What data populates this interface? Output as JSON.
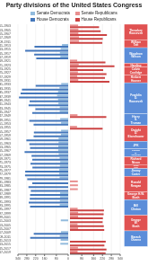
{
  "chart_data": {
    "type": "bar",
    "orientation": "horizontal",
    "title": "Party divisions of the United States Congress",
    "categories": [
      "1901-1903",
      "1903-1905",
      "1905-1907",
      "1907-1909",
      "1909-1911",
      "1911-1913",
      "1913-1915",
      "1915-1917",
      "1917-1919",
      "1919-1921",
      "1921-1923",
      "1923-1925",
      "1925-1927",
      "1927-1929",
      "1929-1931",
      "1931-1933",
      "1933-1935",
      "1935-1937",
      "1937-1939",
      "1939-1941",
      "1941-1943",
      "1943-1945",
      "1945-1947",
      "1947-1949",
      "1949-1951",
      "1951-1953",
      "1953-1955",
      "1955-1957",
      "1957-1959",
      "1959-1961",
      "1961-1963",
      "1963-1965",
      "1965-1967",
      "1967-1969",
      "1969-1971",
      "1971-1973",
      "1973-1975",
      "1975-1977",
      "1977-1979",
      "1979-1981",
      "1981-1983",
      "1983-1985",
      "1985-1987",
      "1987-1989",
      "1989-1991",
      "1991-1993",
      "1993-1995",
      "1995-1997",
      "1997-1999",
      "1999-2001",
      "2001-2003",
      "2003-2005",
      "2005-2007",
      "2007-2009",
      "2009-2011",
      "2011-2013",
      "2013-2015",
      "2015-2017",
      "2017-2019"
    ],
    "series": [
      {
        "name": "Senate Democrats",
        "color": "#92BBDD",
        "values": [
          0,
          0,
          0,
          0,
          0,
          42,
          51,
          56,
          53,
          0,
          0,
          0,
          0,
          0,
          0,
          47,
          59,
          69,
          75,
          69,
          66,
          57,
          57,
          0,
          54,
          48,
          0,
          48,
          49,
          65,
          65,
          67,
          68,
          64,
          58,
          54,
          56,
          60,
          61,
          58,
          0,
          0,
          0,
          55,
          55,
          56,
          57,
          0,
          0,
          0,
          50,
          0,
          0,
          49,
          57,
          51,
          53,
          0,
          0
        ]
      },
      {
        "name": "Senate Republicans",
        "color": "#E89090",
        "axis": "x2",
        "values": [
          55,
          57,
          57,
          61,
          61,
          0,
          0,
          0,
          0,
          49,
          59,
          51,
          54,
          49,
          56,
          0,
          0,
          0,
          0,
          0,
          0,
          0,
          0,
          51,
          0,
          0,
          48,
          0,
          0,
          0,
          0,
          0,
          0,
          0,
          0,
          0,
          0,
          0,
          0,
          0,
          53,
          54,
          53,
          0,
          0,
          0,
          0,
          52,
          55,
          55,
          0,
          51,
          55,
          0,
          0,
          0,
          0,
          54,
          52
        ]
      },
      {
        "name": "House Democrats",
        "color": "#4477BB",
        "values": [
          0,
          0,
          0,
          0,
          0,
          228,
          291,
          230,
          216,
          0,
          0,
          0,
          0,
          0,
          0,
          220,
          313,
          322,
          333,
          261,
          268,
          222,
          243,
          0,
          263,
          234,
          0,
          232,
          234,
          283,
          263,
          258,
          295,
          248,
          243,
          255,
          242,
          291,
          292,
          277,
          243,
          269,
          253,
          258,
          260,
          267,
          258,
          0,
          0,
          0,
          0,
          0,
          0,
          233,
          257,
          0,
          0,
          0,
          0
        ]
      },
      {
        "name": "House Republicans",
        "color": "#CC4444",
        "axis": "x2",
        "values": [
          197,
          208,
          250,
          222,
          219,
          0,
          0,
          0,
          0,
          240,
          301,
          225,
          247,
          237,
          267,
          0,
          0,
          0,
          0,
          0,
          0,
          0,
          0,
          246,
          0,
          0,
          221,
          0,
          0,
          0,
          0,
          0,
          0,
          0,
          0,
          0,
          0,
          0,
          0,
          0,
          0,
          0,
          0,
          0,
          0,
          0,
          0,
          230,
          228,
          223,
          221,
          229,
          232,
          0,
          0,
          242,
          233,
          247,
          241
        ]
      }
    ],
    "xlim": [
      0,
      340
    ],
    "xticks": [
      0,
      80,
      160,
      220,
      280,
      340
    ],
    "x2lim": [
      0,
      340
    ],
    "x2ticks": [
      80,
      160,
      220,
      280,
      340
    ],
    "grid": true,
    "legend": "top",
    "annotations": [
      {
        "text": "Theodore\nRoosevelt",
        "from": "1901-1903",
        "to": "1907-1909",
        "color": "#E05252"
      },
      {
        "text": "William\nTaft",
        "from": "1909-1911",
        "to": "1911-1913",
        "color": "#E05252"
      },
      {
        "text": "Woodrow\nWilson",
        "from": "1913-1915",
        "to": "1919-1921",
        "color": "#5B8DD9"
      },
      {
        "text": "Harding",
        "from": "1921-1923",
        "to": "1921-1923",
        "color": "#E05252"
      },
      {
        "text": "Calvin\nCoolidge",
        "from": "1923-1925",
        "to": "1925-1927",
        "color": "#E05252"
      },
      {
        "text": "Herbert\nHoover",
        "from": "1927-1929",
        "to": "1929-1931",
        "color": "#E05252"
      },
      {
        "text": "Franklin\nD.\nRoosevelt",
        "from": "1931-1933",
        "to": "1945-1947",
        "color": "#5B8DD9"
      },
      {
        "text": "Harry\nS.\nTruman",
        "from": "1947-1949",
        "to": "1951-1953",
        "color": "#5B8DD9"
      },
      {
        "text": "Dwight\nD.\nEisenhower",
        "from": "1953-1955",
        "to": "1959-1961",
        "color": "#E05252"
      },
      {
        "text": "JFK",
        "from": "1961-1963",
        "to": "1963-1965",
        "color": "#5B8DD9"
      },
      {
        "text": "Lyndon\nB.\nJohnson",
        "from": "1965-1967",
        "to": "1967-1969",
        "color": "#5B8DD9"
      },
      {
        "text": "Richard\nNixon",
        "from": "1969-1971",
        "to": "1971-1973",
        "color": "#E05252"
      },
      {
        "text": "Gerald\nFord",
        "from": "1973-1975",
        "to": "1973-1975",
        "color": "#E05252"
      },
      {
        "text": "Jimmy\nCarter",
        "from": "1975-1977",
        "to": "1977-1979",
        "color": "#5B8DD9"
      },
      {
        "text": "Ronald\nReagan",
        "from": "1979-1981",
        "to": "1985-1987",
        "color": "#E05252"
      },
      {
        "text": "George H.W.\nBush",
        "from": "1987-1989",
        "to": "1989-1991",
        "color": "#E05252"
      },
      {
        "text": "Bill\nClinton",
        "from": "1991-1993",
        "to": "1997-1999",
        "color": "#5B8DD9"
      },
      {
        "text": "George\nW.\nBush",
        "from": "1999-2001",
        "to": "2005-2007",
        "color": "#E05252"
      },
      {
        "text": "Barack\nObama",
        "from": "2007-2009",
        "to": "2013-2015",
        "color": "#5B8DD9"
      }
    ]
  }
}
